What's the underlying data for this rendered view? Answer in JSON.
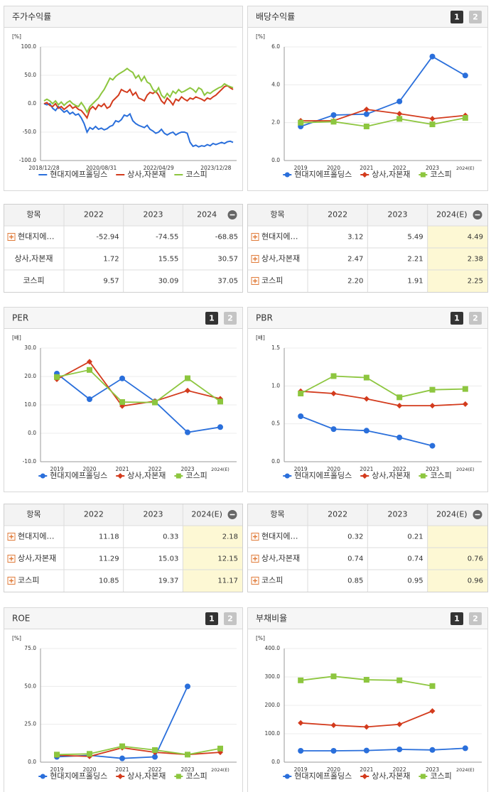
{
  "chart_data": [
    {
      "type": "line",
      "title": "주가수익률",
      "unit": "[%]",
      "categories": [
        "2018/12/28",
        null,
        null,
        null,
        null,
        null,
        null,
        null,
        null,
        null,
        null,
        null,
        null,
        null,
        null,
        null,
        null,
        null,
        null,
        null,
        "2020/08/31",
        null,
        null,
        null,
        null,
        null,
        null,
        null,
        null,
        null,
        null,
        null,
        null,
        null,
        null,
        null,
        null,
        null,
        null,
        null,
        "2022/04/29",
        null,
        null,
        null,
        null,
        null,
        null,
        null,
        null,
        null,
        null,
        null,
        null,
        null,
        null,
        null,
        null,
        null,
        null,
        null,
        "2023/12/28",
        null,
        null,
        null,
        null,
        null,
        null
      ],
      "series": [
        {
          "name": "현대지에프홀딩스",
          "color": "#2a6fdb",
          "values": [
            0,
            -2,
            0,
            -8,
            -12,
            -5,
            -10,
            -15,
            -12,
            -18,
            -15,
            -20,
            -18,
            -25,
            -35,
            -50,
            -42,
            -45,
            -40,
            -45,
            -43,
            -46,
            -44,
            -40,
            -38,
            -30,
            -32,
            -28,
            -20,
            -22,
            -18,
            -30,
            -35,
            -38,
            -40,
            -42,
            -38,
            -45,
            -48,
            -52,
            -50,
            -45,
            -52,
            -55,
            -52,
            -50,
            -55,
            -52,
            -50,
            -50,
            -52,
            -68,
            -75,
            -73,
            -76,
            -74,
            -75,
            -72,
            -74,
            -70,
            -72,
            -70,
            -68,
            -70,
            -67,
            -66,
            -68
          ]
        },
        {
          "name": "상사,자본재",
          "color": "#d33b1d",
          "values": [
            0,
            2,
            -3,
            -5,
            0,
            -8,
            -5,
            -10,
            -6,
            -2,
            -8,
            -5,
            -10,
            -12,
            -18,
            -25,
            -10,
            -5,
            -10,
            -2,
            -5,
            0,
            -8,
            -5,
            5,
            10,
            15,
            25,
            22,
            20,
            25,
            15,
            20,
            10,
            8,
            5,
            15,
            20,
            18,
            22,
            15,
            5,
            0,
            10,
            5,
            -2,
            8,
            5,
            12,
            8,
            5,
            10,
            8,
            12,
            10,
            8,
            5,
            10,
            8,
            12,
            15,
            20,
            25,
            30,
            32,
            28,
            25
          ]
        },
        {
          "name": "코스피",
          "color": "#8dc63f",
          "values": [
            5,
            8,
            5,
            0,
            5,
            -2,
            3,
            -3,
            2,
            5,
            0,
            -3,
            -5,
            2,
            -5,
            -15,
            -5,
            0,
            5,
            10,
            18,
            25,
            35,
            45,
            42,
            48,
            52,
            55,
            58,
            62,
            58,
            55,
            45,
            50,
            40,
            48,
            38,
            35,
            25,
            20,
            28,
            15,
            10,
            18,
            12,
            22,
            18,
            25,
            20,
            22,
            25,
            28,
            25,
            20,
            28,
            25,
            15,
            20,
            18,
            22,
            25,
            28,
            30,
            35,
            32,
            30,
            28
          ]
        }
      ],
      "ylim": [
        -100,
        100
      ],
      "yticks": [
        {
          "value": -100,
          "label": "-100.0"
        },
        {
          "value": -50,
          "label": "-50.0"
        },
        {
          "value": 0,
          "label": "0.0"
        },
        {
          "value": 50,
          "label": "50.0"
        },
        {
          "value": 100,
          "label": "100.0"
        }
      ],
      "grid": true
    },
    {
      "type": "line",
      "title": "배당수익률",
      "unit": "[%]",
      "buttons": [
        "1",
        "2"
      ],
      "categories": [
        "2019",
        "2020",
        "2021",
        "2022",
        "2023",
        "2024(E)"
      ],
      "series": [
        {
          "name": "현대지에프홀딩스",
          "color": "#2a6fdb",
          "marker": "circle",
          "values": [
            1.8,
            2.4,
            2.45,
            3.12,
            5.49,
            4.49
          ]
        },
        {
          "name": "상사,자본재",
          "color": "#d33b1d",
          "marker": "diamond",
          "values": [
            2.1,
            2.1,
            2.7,
            2.47,
            2.21,
            2.38
          ]
        },
        {
          "name": "코스피",
          "color": "#8dc63f",
          "marker": "square",
          "values": [
            2.0,
            2.05,
            1.8,
            2.2,
            1.91,
            2.25
          ]
        }
      ],
      "ylim": [
        0,
        6
      ],
      "yticks": [
        {
          "value": 0,
          "label": "0.0"
        },
        {
          "value": 2,
          "label": "2.0"
        },
        {
          "value": 4,
          "label": "4.0"
        },
        {
          "value": 6,
          "label": "6.0"
        }
      ],
      "grid": true
    },
    {
      "type": "line",
      "title": "PER",
      "unit": "[배]",
      "buttons": [
        "1",
        "2"
      ],
      "categories": [
        "2019",
        "2020",
        "2021",
        "2022",
        "2023",
        "2024(E)"
      ],
      "series": [
        {
          "name": "현대지에프홀딩스",
          "color": "#2a6fdb",
          "marker": "circle",
          "values": [
            21,
            12,
            19.3,
            11.18,
            0.33,
            2.18
          ]
        },
        {
          "name": "상사,자본재",
          "color": "#d33b1d",
          "marker": "diamond",
          "values": [
            19,
            25.2,
            9.6,
            11.29,
            15.03,
            12.15
          ]
        },
        {
          "name": "코스피",
          "color": "#8dc63f",
          "marker": "square",
          "values": [
            19.8,
            22.3,
            11,
            10.85,
            19.37,
            11.17
          ]
        }
      ],
      "ylim": [
        -10,
        30
      ],
      "yticks": [
        {
          "value": -10,
          "label": "-10.0"
        },
        {
          "value": 0,
          "label": "0.0"
        },
        {
          "value": 10,
          "label": "10.0"
        },
        {
          "value": 20,
          "label": "20.0"
        },
        {
          "value": 30,
          "label": "30.0"
        }
      ],
      "grid": true
    },
    {
      "type": "line",
      "title": "PBR",
      "unit": "[배]",
      "buttons": [
        "1",
        "2"
      ],
      "categories": [
        "2019",
        "2020",
        "2021",
        "2022",
        "2023",
        "2024(E)"
      ],
      "series": [
        {
          "name": "현대지에프홀딩스",
          "color": "#2a6fdb",
          "marker": "circle",
          "values": [
            0.6,
            0.43,
            0.41,
            0.32,
            0.21,
            null
          ]
        },
        {
          "name": "상사,자본재",
          "color": "#d33b1d",
          "marker": "diamond",
          "values": [
            0.93,
            0.9,
            0.83,
            0.74,
            0.74,
            0.76
          ]
        },
        {
          "name": "코스피",
          "color": "#8dc63f",
          "marker": "square",
          "values": [
            0.9,
            1.13,
            1.11,
            0.85,
            0.95,
            0.96
          ]
        }
      ],
      "ylim": [
        0,
        1.5
      ],
      "yticks": [
        {
          "value": 0,
          "label": "0.0"
        },
        {
          "value": 0.5,
          "label": "0.5"
        },
        {
          "value": 1,
          "label": "1.0"
        },
        {
          "value": 1.5,
          "label": "1.5"
        }
      ],
      "grid": true
    },
    {
      "type": "line",
      "title": "ROE",
      "unit": "[%]",
      "buttons": [
        "1",
        "2"
      ],
      "categories": [
        "2019",
        "2020",
        "2021",
        "2022",
        "2023",
        "2024(E)"
      ],
      "series": [
        {
          "name": "현대지에프홀딩스",
          "color": "#2a6fdb",
          "marker": "circle",
          "values": [
            3.5,
            4.5,
            2.5,
            3.5,
            50,
            null
          ]
        },
        {
          "name": "상사,자본재",
          "color": "#d33b1d",
          "marker": "diamond",
          "values": [
            4.5,
            3.8,
            9.5,
            6.5,
            5,
            6.5
          ]
        },
        {
          "name": "코스피",
          "color": "#8dc63f",
          "marker": "square",
          "values": [
            5,
            5.5,
            10.5,
            8,
            5,
            9
          ]
        }
      ],
      "ylim": [
        0,
        75
      ],
      "yticks": [
        {
          "value": 0,
          "label": "0.0"
        },
        {
          "value": 25,
          "label": "25.0"
        },
        {
          "value": 50,
          "label": "50.0"
        },
        {
          "value": 75,
          "label": "75.0"
        }
      ],
      "grid": true
    },
    {
      "type": "line",
      "title": "부채비율",
      "unit": "[%]",
      "buttons": [
        "1",
        "2"
      ],
      "categories": [
        "2019",
        "2020",
        "2021",
        "2022",
        "2023",
        "2024(E)"
      ],
      "series": [
        {
          "name": "현대지에프홀딩스",
          "color": "#2a6fdb",
          "marker": "circle",
          "values": [
            40,
            40,
            41,
            45,
            43,
            49
          ]
        },
        {
          "name": "상사,자본재",
          "color": "#d33b1d",
          "marker": "diamond",
          "values": [
            138,
            130,
            124,
            133,
            180,
            null
          ]
        },
        {
          "name": "코스피",
          "color": "#8dc63f",
          "marker": "square",
          "values": [
            288,
            302,
            290,
            288,
            268,
            null
          ]
        }
      ],
      "ylim": [
        0,
        400
      ],
      "yticks": [
        {
          "value": 0,
          "label": "0.0"
        },
        {
          "value": 100,
          "label": "100.0"
        },
        {
          "value": 200,
          "label": "200.0"
        },
        {
          "value": 300,
          "label": "300.0"
        },
        {
          "value": 400,
          "label": "400.0"
        }
      ],
      "grid": true
    }
  ],
  "tables": [
    {
      "columns": [
        "항목",
        "2022",
        "2023",
        "2024"
      ],
      "highlight_last": false,
      "expandable": [
        true,
        false,
        false
      ],
      "rows": [
        [
          "현대지에…",
          "-52.94",
          "-74.55",
          "-68.85"
        ],
        [
          "상사,자본재",
          "1.72",
          "15.55",
          "30.57"
        ],
        [
          "코스피",
          "9.57",
          "30.09",
          "37.05"
        ]
      ]
    },
    {
      "columns": [
        "항목",
        "2022",
        "2023",
        "2024(E)"
      ],
      "highlight_last": true,
      "expandable": [
        true,
        true,
        true
      ],
      "rows": [
        [
          "현대지에…",
          "3.12",
          "5.49",
          "4.49"
        ],
        [
          "상사,자본재",
          "2.47",
          "2.21",
          "2.38"
        ],
        [
          "코스피",
          "2.20",
          "1.91",
          "2.25"
        ]
      ]
    },
    {
      "columns": [
        "항목",
        "2022",
        "2023",
        "2024(E)"
      ],
      "highlight_last": true,
      "expandable": [
        true,
        true,
        true
      ],
      "rows": [
        [
          "현대지에…",
          "11.18",
          "0.33",
          "2.18"
        ],
        [
          "상사,자본재",
          "11.29",
          "15.03",
          "12.15"
        ],
        [
          "코스피",
          "10.85",
          "19.37",
          "11.17"
        ]
      ]
    },
    {
      "columns": [
        "항목",
        "2022",
        "2023",
        "2024(E)"
      ],
      "highlight_last": true,
      "expandable": [
        true,
        true,
        true
      ],
      "rows": [
        [
          "현대지에…",
          "0.32",
          "0.21",
          null
        ],
        [
          "상사,자본재",
          "0.74",
          "0.74",
          "0.76"
        ],
        [
          "코스피",
          "0.85",
          "0.95",
          "0.96"
        ]
      ]
    }
  ]
}
